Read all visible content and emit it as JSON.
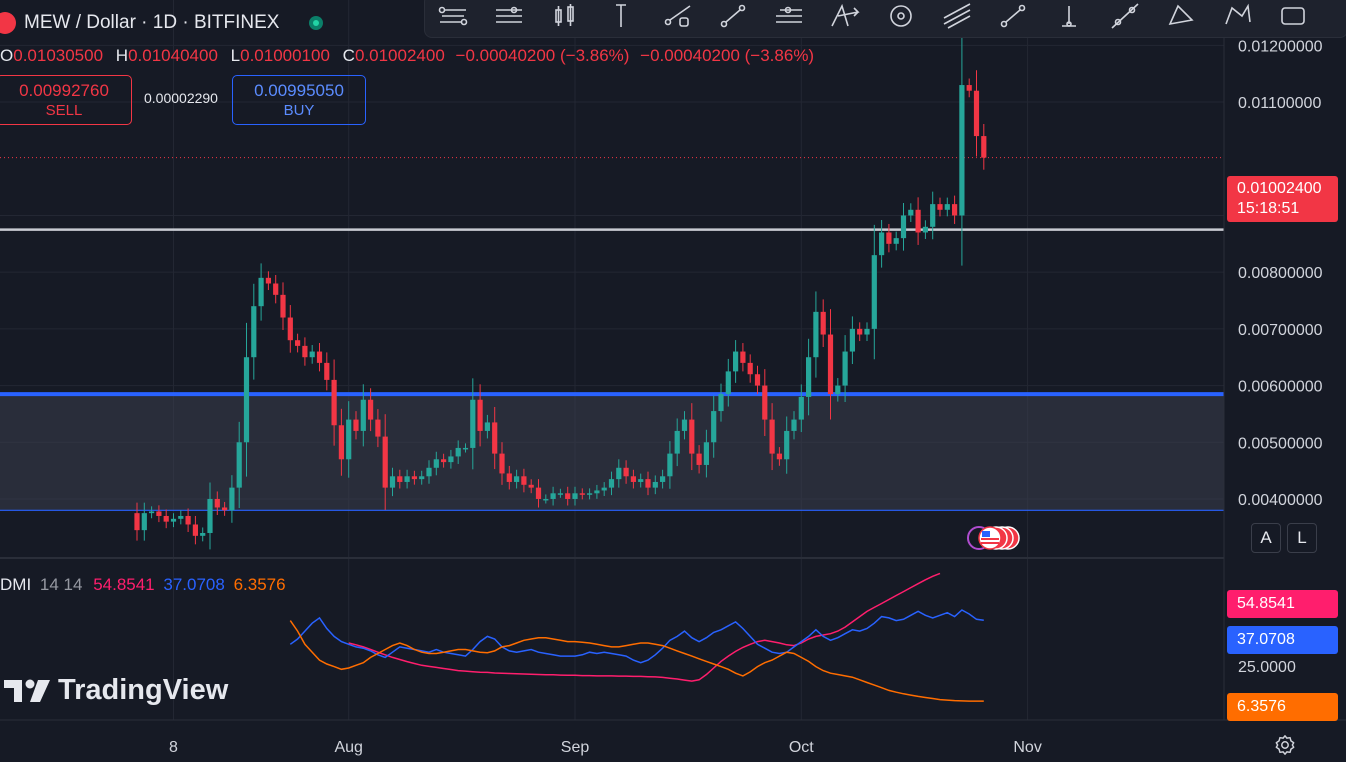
{
  "header": {
    "symbol_title": "MEW / Dollar · 1D · BITFINEX",
    "ohlc": {
      "o_label": "O",
      "o_value": "0.01030500",
      "h_label": "H",
      "h_value": "0.01040400",
      "l_label": "L",
      "l_value": "0.01000100",
      "c_label": "C",
      "c_value": "0.01002400",
      "change": "−0.00040200 (−3.86%)",
      "change2": "−0.00040200 (−3.86%)"
    }
  },
  "trade": {
    "sell_price": "0.00992760",
    "sell_label": "SELL",
    "spread": "0.00002290",
    "buy_price": "0.00995050",
    "buy_label": "BUY"
  },
  "toolbar_icons": [
    "pitchfork-icon",
    "horizontal-lines-icon",
    "candles-icon",
    "vertical-line-icon",
    "ray-icon",
    "trend-line-icon",
    "parallel-channel-icon",
    "cross-arrow-icon",
    "circle-icon",
    "fib-lines-icon",
    "info-line-icon",
    "vertical-ray-icon",
    "extended-line-icon",
    "triangle-icon",
    "polyline-icon",
    "box-icon"
  ],
  "price_axis": {
    "ticks": [
      "0.01200000",
      "0.01100000",
      "0.00900000",
      "0.00800000",
      "0.00700000",
      "0.00600000",
      "0.00500000",
      "0.00400000"
    ],
    "current_price": "0.01002400",
    "countdown": "15:18:51",
    "auto_label": "A",
    "log_label": "L"
  },
  "time_axis": {
    "ticks": [
      "8",
      "Aug",
      "Sep",
      "Oct",
      "Nov"
    ]
  },
  "indicator": {
    "name": "DMI",
    "params": "14 14",
    "adx": "54.8541",
    "plus_di": "37.0708",
    "minus_di": "6.3576",
    "axis_tick": "25.0000"
  },
  "brand": "TradingView",
  "colors": {
    "up": "#26a69a",
    "down": "#f23645",
    "adx": "#ff1e6d",
    "plus_di": "#2962ff",
    "minus_di": "#ff6d00",
    "level": "#c8cbd2",
    "zone_line": "#2962ff"
  },
  "chart_data": {
    "type": "candlestick",
    "symbol": "MEW / Dollar",
    "interval": "1D",
    "exchange": "BITFINEX",
    "x": [
      "Jul 3",
      "Jul 4",
      "Jul 5",
      "Jul 6",
      "Jul 7",
      "Jul 8",
      "Jul 9",
      "Jul 10",
      "Jul 11",
      "Jul 12",
      "Jul 13",
      "Jul 14",
      "Jul 15",
      "Jul 16",
      "Jul 17",
      "Jul 18",
      "Jul 19",
      "Jul 20",
      "Jul 21",
      "Jul 22",
      "Jul 23",
      "Jul 24",
      "Jul 25",
      "Jul 26",
      "Jul 27",
      "Jul 28",
      "Jul 29",
      "Jul 30",
      "Jul 31",
      "Aug 1",
      "Aug 2",
      "Aug 3",
      "Aug 4",
      "Aug 5",
      "Aug 6",
      "Aug 7",
      "Aug 8",
      "Aug 9",
      "Aug 10",
      "Aug 11",
      "Aug 12",
      "Aug 13",
      "Aug 14",
      "Aug 15",
      "Aug 16",
      "Aug 17",
      "Aug 18",
      "Aug 19",
      "Aug 20",
      "Aug 21",
      "Aug 22",
      "Aug 23",
      "Aug 24",
      "Aug 25",
      "Aug 26",
      "Aug 27",
      "Aug 28",
      "Aug 29",
      "Aug 30",
      "Aug 31",
      "Sep 1",
      "Sep 2",
      "Sep 3",
      "Sep 4",
      "Sep 5",
      "Sep 6",
      "Sep 7",
      "Sep 8",
      "Sep 9",
      "Sep 10",
      "Sep 11",
      "Sep 12",
      "Sep 13",
      "Sep 14",
      "Sep 15",
      "Sep 16",
      "Sep 17",
      "Sep 18",
      "Sep 19",
      "Sep 20",
      "Sep 21",
      "Sep 22",
      "Sep 23",
      "Sep 24",
      "Sep 25",
      "Sep 26",
      "Sep 27",
      "Sep 28",
      "Sep 29",
      "Sep 30",
      "Oct 1",
      "Oct 2",
      "Oct 3",
      "Oct 4",
      "Oct 5",
      "Oct 6",
      "Oct 7",
      "Oct 8",
      "Oct 9",
      "Oct 10",
      "Oct 11",
      "Oct 12",
      "Oct 13",
      "Oct 14",
      "Oct 15",
      "Oct 16",
      "Oct 17",
      "Oct 18",
      "Oct 19",
      "Oct 20",
      "Oct 21",
      "Oct 22",
      "Oct 23",
      "Oct 24",
      "Oct 25",
      "Oct 26",
      "Oct 27"
    ],
    "open": [
      0.00375,
      0.00345,
      0.00375,
      0.00378,
      0.0037,
      0.0036,
      0.00365,
      0.0037,
      0.00355,
      0.00335,
      0.0034,
      0.004,
      0.00385,
      0.0038,
      0.0042,
      0.005,
      0.0065,
      0.0074,
      0.0079,
      0.0078,
      0.0076,
      0.0072,
      0.0068,
      0.0067,
      0.0065,
      0.0066,
      0.0064,
      0.0061,
      0.0053,
      0.0047,
      0.0054,
      0.0052,
      0.00575,
      0.0054,
      0.0051,
      0.0042,
      0.0044,
      0.0043,
      0.0044,
      0.00435,
      0.0044,
      0.00455,
      0.0047,
      0.00465,
      0.00475,
      0.0049,
      0.0049,
      0.00575,
      0.0052,
      0.00535,
      0.0048,
      0.00445,
      0.0043,
      0.0044,
      0.00425,
      0.0042,
      0.004,
      0.004,
      0.0041,
      0.0041,
      0.004,
      0.0041,
      0.00408,
      0.0041,
      0.00415,
      0.0042,
      0.00435,
      0.00455,
      0.0044,
      0.0043,
      0.00435,
      0.0042,
      0.0043,
      0.0044,
      0.0048,
      0.0052,
      0.0054,
      0.0048,
      0.0046,
      0.005,
      0.00555,
      0.00585,
      0.00625,
      0.0066,
      0.0064,
      0.0062,
      0.006,
      0.0054,
      0.0048,
      0.0047,
      0.0052,
      0.0054,
      0.0058,
      0.0065,
      0.0073,
      0.0069,
      0.00585,
      0.006,
      0.0066,
      0.007,
      0.0069,
      0.007,
      0.0083,
      0.0087,
      0.0085,
      0.0086,
      0.009,
      0.0091,
      0.0087,
      0.0088,
      0.0092,
      0.0091,
      0.0092,
      0.009,
      0.0113,
      0.0112,
      0.0104
    ],
    "close": [
      0.00345,
      0.00375,
      0.00378,
      0.0037,
      0.0036,
      0.00365,
      0.0037,
      0.00355,
      0.00335,
      0.0034,
      0.004,
      0.00385,
      0.0038,
      0.0042,
      0.005,
      0.0065,
      0.0074,
      0.0079,
      0.0078,
      0.0076,
      0.0072,
      0.0068,
      0.0067,
      0.0065,
      0.0066,
      0.0064,
      0.0061,
      0.0053,
      0.0047,
      0.0054,
      0.0052,
      0.00575,
      0.0054,
      0.0051,
      0.0042,
      0.0044,
      0.0043,
      0.0044,
      0.00435,
      0.0044,
      0.00455,
      0.0047,
      0.00465,
      0.00475,
      0.0049,
      0.0049,
      0.00575,
      0.0052,
      0.00535,
      0.0048,
      0.00445,
      0.0043,
      0.0044,
      0.00425,
      0.0042,
      0.004,
      0.004,
      0.0041,
      0.0041,
      0.004,
      0.0041,
      0.00408,
      0.0041,
      0.00415,
      0.0042,
      0.00435,
      0.00455,
      0.0044,
      0.0043,
      0.00435,
      0.0042,
      0.0043,
      0.0044,
      0.0048,
      0.0052,
      0.0054,
      0.0048,
      0.0046,
      0.005,
      0.00555,
      0.00585,
      0.00625,
      0.0066,
      0.0064,
      0.0062,
      0.006,
      0.0054,
      0.0048,
      0.0047,
      0.0052,
      0.0054,
      0.0058,
      0.0065,
      0.0073,
      0.0069,
      0.00585,
      0.006,
      0.0066,
      0.007,
      0.0069,
      0.007,
      0.0083,
      0.0087,
      0.0085,
      0.0086,
      0.009,
      0.0091,
      0.0087,
      0.0088,
      0.0092,
      0.0091,
      0.0092,
      0.009,
      0.0113,
      0.0112,
      0.0104,
      0.01002
    ],
    "levels": [
      {
        "price": 0.00875,
        "color": "#c8cbd2"
      }
    ],
    "zone": {
      "top": 0.00585,
      "bottom": 0.0038
    },
    "y_range": [
      0.0031,
      0.0128
    ],
    "dmi": {
      "adx": [
        null,
        null,
        null,
        null,
        null,
        null,
        null,
        null,
        null,
        null,
        null,
        null,
        null,
        null,
        null,
        null,
        null,
        null,
        null,
        null,
        null,
        null,
        null,
        null,
        null,
        null,
        null,
        null,
        null,
        28.5,
        27.8,
        27.0,
        26.0,
        25.0,
        24.0,
        23.0,
        22.2,
        21.4,
        20.7,
        20.0,
        19.6,
        19.2,
        18.8,
        18.4,
        18.0,
        17.8,
        17.6,
        17.4,
        17.3,
        17.1,
        17.0,
        16.9,
        16.8,
        16.7,
        16.6,
        16.5,
        16.4,
        16.4,
        16.3,
        16.2,
        16.2,
        16.1,
        16.1,
        16.0,
        16.0,
        16.0,
        15.9,
        15.9,
        15.8,
        15.8,
        15.7,
        15.6,
        15.4,
        15.1,
        14.8,
        14.4,
        14.0,
        14.5,
        16.5,
        19.0,
        21.5,
        23.5,
        25.3,
        26.8,
        28.0,
        29.0,
        29.5,
        29.0,
        28.5,
        27.8,
        27.5,
        28.5,
        30.0,
        31.0,
        31.5,
        32.0,
        33.0,
        34.5,
        36.5,
        38.5,
        40.5,
        42.0,
        43.5,
        45.0,
        46.5,
        48.0,
        49.5,
        51.0,
        52.5,
        53.8,
        54.9
      ],
      "plus_di": [
        null,
        null,
        null,
        null,
        null,
        null,
        null,
        null,
        null,
        null,
        null,
        null,
        null,
        null,
        null,
        null,
        null,
        null,
        null,
        null,
        null,
        28.0,
        30.0,
        33.0,
        36.0,
        38.0,
        34.0,
        31.0,
        29.0,
        28.0,
        27.0,
        26.5,
        25.5,
        24.0,
        23.0,
        25.0,
        27.0,
        26.5,
        26.0,
        25.5,
        25.0,
        26.0,
        25.0,
        24.5,
        24.0,
        23.5,
        26.0,
        29.0,
        31.0,
        30.0,
        27.0,
        25.5,
        25.0,
        25.5,
        26.0,
        25.0,
        24.5,
        24.0,
        23.5,
        23.5,
        23.5,
        24.0,
        25.0,
        24.5,
        25.0,
        24.5,
        24.0,
        23.5,
        22.0,
        21.0,
        22.0,
        24.0,
        26.5,
        29.5,
        31.0,
        33.0,
        30.5,
        29.0,
        30.5,
        32.5,
        33.5,
        35.0,
        36.5,
        34.0,
        31.0,
        28.0,
        26.5,
        25.0,
        24.5,
        25.0,
        27.0,
        29.0,
        31.0,
        33.5,
        31.0,
        29.5,
        30.5,
        32.0,
        33.5,
        33.0,
        34.0,
        36.0,
        38.5,
        38.0,
        37.0,
        37.5,
        39.0,
        40.5,
        39.0,
        38.0,
        39.0,
        40.0,
        38.5,
        41.0,
        39.5,
        37.5,
        37.1
      ],
      "minus_di": [
        null,
        null,
        null,
        null,
        null,
        null,
        null,
        null,
        null,
        null,
        null,
        null,
        null,
        null,
        null,
        null,
        null,
        null,
        null,
        null,
        null,
        37.0,
        33.0,
        28.0,
        25.0,
        22.0,
        20.5,
        19.5,
        18.5,
        19.0,
        20.0,
        21.0,
        23.0,
        24.5,
        26.0,
        27.5,
        28.5,
        27.5,
        26.0,
        25.0,
        24.5,
        24.5,
        25.0,
        25.5,
        26.0,
        26.0,
        25.5,
        25.0,
        24.8,
        25.5,
        27.0,
        27.5,
        28.5,
        29.5,
        30.0,
        30.5,
        30.5,
        30.0,
        29.5,
        29.0,
        29.0,
        28.8,
        28.5,
        28.0,
        27.5,
        27.0,
        27.0,
        27.5,
        28.0,
        28.5,
        28.5,
        28.0,
        27.5,
        26.5,
        25.5,
        24.5,
        23.5,
        22.5,
        21.5,
        20.5,
        19.5,
        18.5,
        17.0,
        16.0,
        17.5,
        19.5,
        21.0,
        22.0,
        23.5,
        25.0,
        24.5,
        23.0,
        21.5,
        19.5,
        18.0,
        17.0,
        16.5,
        16.0,
        15.5,
        14.5,
        13.5,
        12.5,
        11.5,
        10.5,
        9.8,
        9.2,
        8.7,
        8.2,
        7.8,
        7.4,
        7.0,
        6.8,
        6.6,
        6.5,
        6.4,
        6.4,
        6.4
      ]
    }
  }
}
